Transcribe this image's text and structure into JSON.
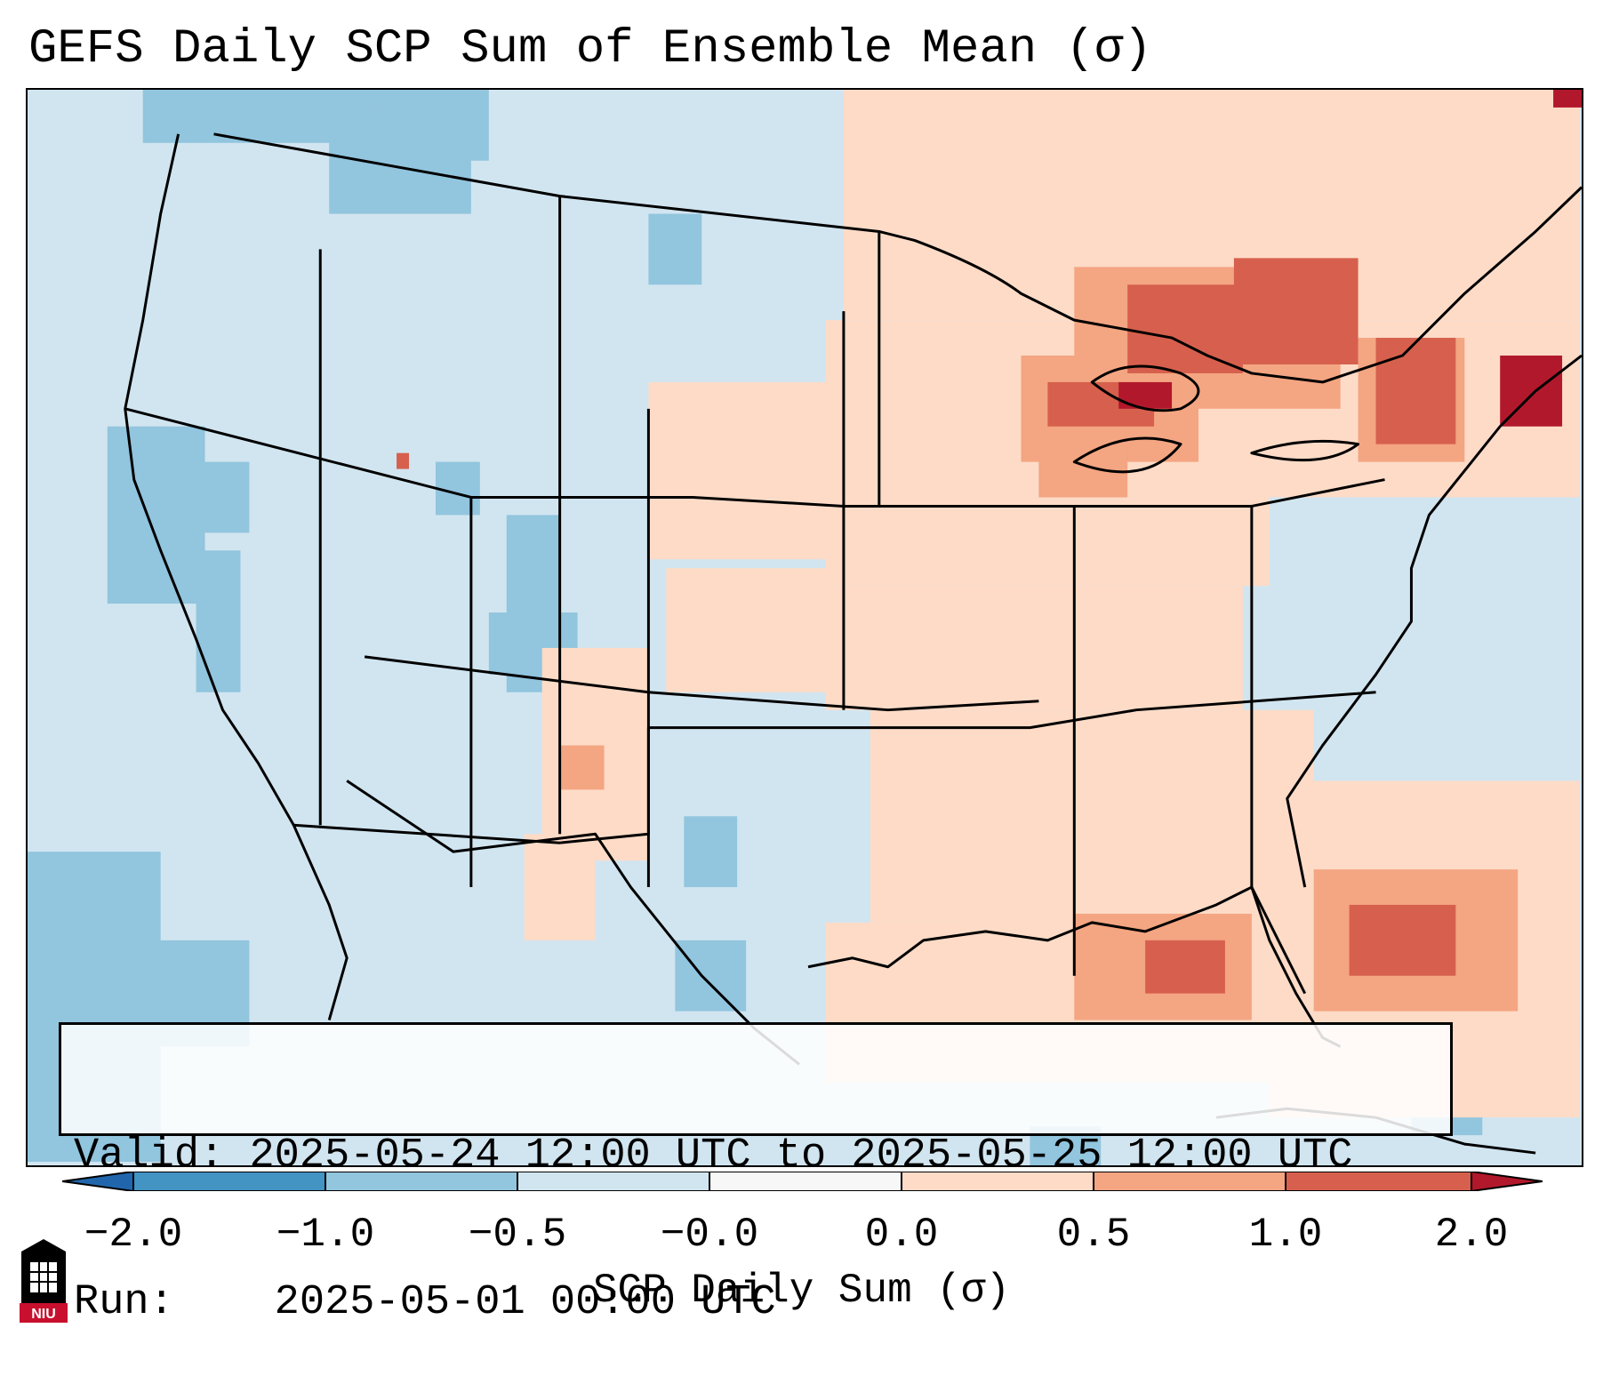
{
  "title": "GEFS Daily SCP Sum of Ensemble Mean (σ)",
  "info": {
    "valid_label": "Valid:",
    "valid_value": "2025-05-24 12:00 UTC to 2025-05-25 12:00 UTC",
    "run_label": "Run:",
    "run_value": "2025-05-01 00:00 UTC"
  },
  "colorbar": {
    "label": "SCP Daily Sum (σ)",
    "ticks": [
      "−2.0",
      "−1.0",
      "−0.5",
      "−0.0",
      "0.0",
      "0.5",
      "1.0",
      "2.0"
    ],
    "colors": {
      "under": "#2166ac",
      "b_neg2_neg1": "#4393c3",
      "b_neg1_neg05": "#92c5de",
      "b_neg05_0": "#d1e5f0",
      "b_0_0": "#f7f7f7",
      "b_0_05": "#fddbc7",
      "b_05_1": "#f4a582",
      "b_1_2": "#d6604d",
      "over": "#b2182b"
    }
  },
  "logo": {
    "text": "NIU",
    "colors": {
      "red": "#c8102e",
      "black": "#000000"
    }
  }
}
